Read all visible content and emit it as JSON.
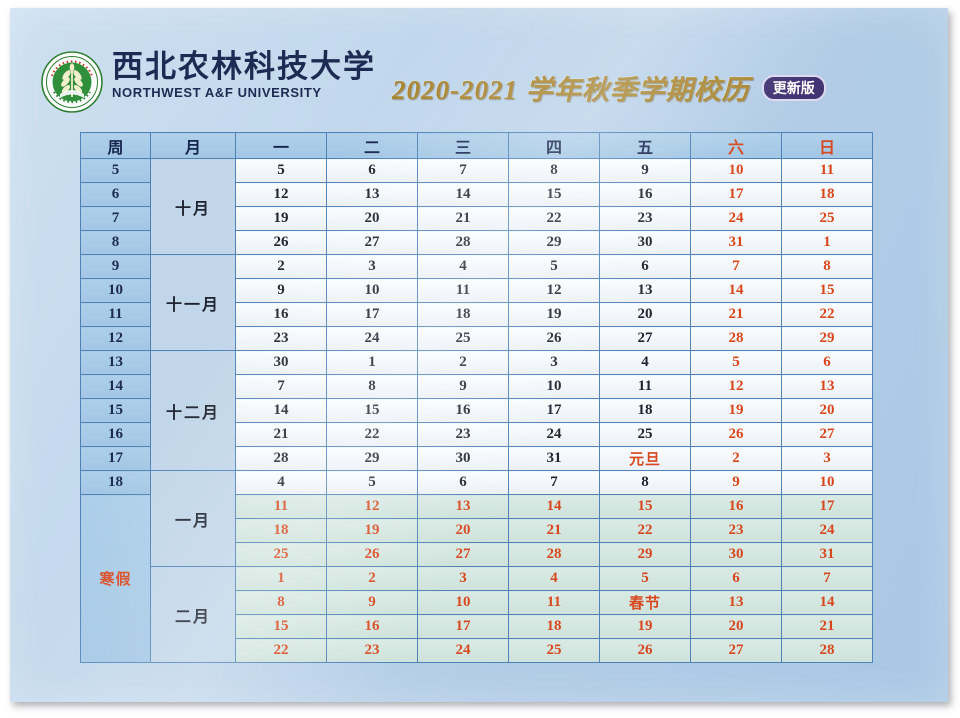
{
  "header": {
    "university_cn": "西北农林科技大学",
    "university_en": "NORTHWEST A&F UNIVERSITY",
    "title": "2020-2021 学年秋季学期校历",
    "badge": "更新版",
    "logo": "northwest-af-university-emblem"
  },
  "colors": {
    "accent_red": "#d8481f",
    "navy_text": "#16254e",
    "title_gold": "#a8842e",
    "badge_purple": "#413473",
    "header_blue": "#a7cae7",
    "month_blue": "#c1d6e9",
    "vacation_green": "#d3e6e0",
    "table_border": "#4f83b8",
    "background_blue": "#b7d1e9",
    "logo_green": "#2f8f3b"
  },
  "calendar": {
    "day_headers": [
      {
        "label": "周",
        "red": false
      },
      {
        "label": "月",
        "red": false
      },
      {
        "label": "一",
        "red": false
      },
      {
        "label": "二",
        "red": false
      },
      {
        "label": "三",
        "red": false
      },
      {
        "label": "四",
        "red": false
      },
      {
        "label": "五",
        "red": false
      },
      {
        "label": "六",
        "red": true
      },
      {
        "label": "日",
        "red": true
      }
    ],
    "week_column": [
      {
        "label": "5",
        "rowspan": 1,
        "red": false
      },
      {
        "label": "6",
        "rowspan": 1,
        "red": false
      },
      {
        "label": "7",
        "rowspan": 1,
        "red": false
      },
      {
        "label": "8",
        "rowspan": 1,
        "red": false
      },
      {
        "label": "9",
        "rowspan": 1,
        "red": false
      },
      {
        "label": "10",
        "rowspan": 1,
        "red": false
      },
      {
        "label": "11",
        "rowspan": 1,
        "red": false
      },
      {
        "label": "12",
        "rowspan": 1,
        "red": false
      },
      {
        "label": "13",
        "rowspan": 1,
        "red": false
      },
      {
        "label": "14",
        "rowspan": 1,
        "red": false
      },
      {
        "label": "15",
        "rowspan": 1,
        "red": false
      },
      {
        "label": "16",
        "rowspan": 1,
        "red": false
      },
      {
        "label": "17",
        "rowspan": 1,
        "red": false
      },
      {
        "label": "18",
        "rowspan": 1,
        "red": false
      },
      {
        "label": "寒假",
        "rowspan": 7,
        "red": true
      }
    ],
    "month_column": [
      {
        "label": "十月",
        "rowspan": 4
      },
      {
        "label": "十一月",
        "rowspan": 4
      },
      {
        "label": "十二月",
        "rowspan": 5
      },
      {
        "label": "一月",
        "rowspan": 4
      },
      {
        "label": "二月",
        "rowspan": 4
      }
    ],
    "rows": [
      {
        "vacation": false,
        "days": [
          "5",
          "6",
          "7",
          "8",
          "9",
          "10",
          "11"
        ],
        "red": [
          0,
          0,
          0,
          0,
          0,
          1,
          1
        ]
      },
      {
        "vacation": false,
        "days": [
          "12",
          "13",
          "14",
          "15",
          "16",
          "17",
          "18"
        ],
        "red": [
          0,
          0,
          0,
          0,
          0,
          1,
          1
        ]
      },
      {
        "vacation": false,
        "days": [
          "19",
          "20",
          "21",
          "22",
          "23",
          "24",
          "25"
        ],
        "red": [
          0,
          0,
          0,
          0,
          0,
          1,
          1
        ]
      },
      {
        "vacation": false,
        "days": [
          "26",
          "27",
          "28",
          "29",
          "30",
          "31",
          "1"
        ],
        "red": [
          0,
          0,
          0,
          0,
          0,
          1,
          1
        ]
      },
      {
        "vacation": false,
        "days": [
          "2",
          "3",
          "4",
          "5",
          "6",
          "7",
          "8"
        ],
        "red": [
          0,
          0,
          0,
          0,
          0,
          1,
          1
        ]
      },
      {
        "vacation": false,
        "days": [
          "9",
          "10",
          "11",
          "12",
          "13",
          "14",
          "15"
        ],
        "red": [
          0,
          0,
          0,
          0,
          0,
          1,
          1
        ]
      },
      {
        "vacation": false,
        "days": [
          "16",
          "17",
          "18",
          "19",
          "20",
          "21",
          "22"
        ],
        "red": [
          0,
          0,
          0,
          0,
          0,
          1,
          1
        ]
      },
      {
        "vacation": false,
        "days": [
          "23",
          "24",
          "25",
          "26",
          "27",
          "28",
          "29"
        ],
        "red": [
          0,
          0,
          0,
          0,
          0,
          1,
          1
        ]
      },
      {
        "vacation": false,
        "days": [
          "30",
          "1",
          "2",
          "3",
          "4",
          "5",
          "6"
        ],
        "red": [
          0,
          0,
          0,
          0,
          0,
          1,
          1
        ]
      },
      {
        "vacation": false,
        "days": [
          "7",
          "8",
          "9",
          "10",
          "11",
          "12",
          "13"
        ],
        "red": [
          0,
          0,
          0,
          0,
          0,
          1,
          1
        ]
      },
      {
        "vacation": false,
        "days": [
          "14",
          "15",
          "16",
          "17",
          "18",
          "19",
          "20"
        ],
        "red": [
          0,
          0,
          0,
          0,
          0,
          1,
          1
        ]
      },
      {
        "vacation": false,
        "days": [
          "21",
          "22",
          "23",
          "24",
          "25",
          "26",
          "27"
        ],
        "red": [
          0,
          0,
          0,
          0,
          0,
          1,
          1
        ]
      },
      {
        "vacation": false,
        "days": [
          "28",
          "29",
          "30",
          "31",
          "元旦",
          "2",
          "3"
        ],
        "red": [
          0,
          0,
          0,
          0,
          1,
          1,
          1
        ]
      },
      {
        "vacation": false,
        "days": [
          "4",
          "5",
          "6",
          "7",
          "8",
          "9",
          "10"
        ],
        "red": [
          0,
          0,
          0,
          0,
          0,
          1,
          1
        ]
      },
      {
        "vacation": true,
        "days": [
          "11",
          "12",
          "13",
          "14",
          "15",
          "16",
          "17"
        ],
        "red": [
          1,
          1,
          1,
          1,
          1,
          1,
          1
        ]
      },
      {
        "vacation": true,
        "days": [
          "18",
          "19",
          "20",
          "21",
          "22",
          "23",
          "24"
        ],
        "red": [
          1,
          1,
          1,
          1,
          1,
          1,
          1
        ]
      },
      {
        "vacation": true,
        "days": [
          "25",
          "26",
          "27",
          "28",
          "29",
          "30",
          "31"
        ],
        "red": [
          1,
          1,
          1,
          1,
          1,
          1,
          1
        ]
      },
      {
        "vacation": true,
        "days": [
          "1",
          "2",
          "3",
          "4",
          "5",
          "6",
          "7"
        ],
        "red": [
          1,
          1,
          1,
          1,
          1,
          1,
          1
        ]
      },
      {
        "vacation": true,
        "days": [
          "8",
          "9",
          "10",
          "11",
          "春节",
          "13",
          "14"
        ],
        "red": [
          1,
          1,
          1,
          1,
          1,
          1,
          1
        ]
      },
      {
        "vacation": true,
        "days": [
          "15",
          "16",
          "17",
          "18",
          "19",
          "20",
          "21"
        ],
        "red": [
          1,
          1,
          1,
          1,
          1,
          1,
          1
        ]
      },
      {
        "vacation": true,
        "days": [
          "22",
          "23",
          "24",
          "25",
          "26",
          "27",
          "28"
        ],
        "red": [
          1,
          1,
          1,
          1,
          1,
          1,
          1
        ]
      }
    ]
  }
}
